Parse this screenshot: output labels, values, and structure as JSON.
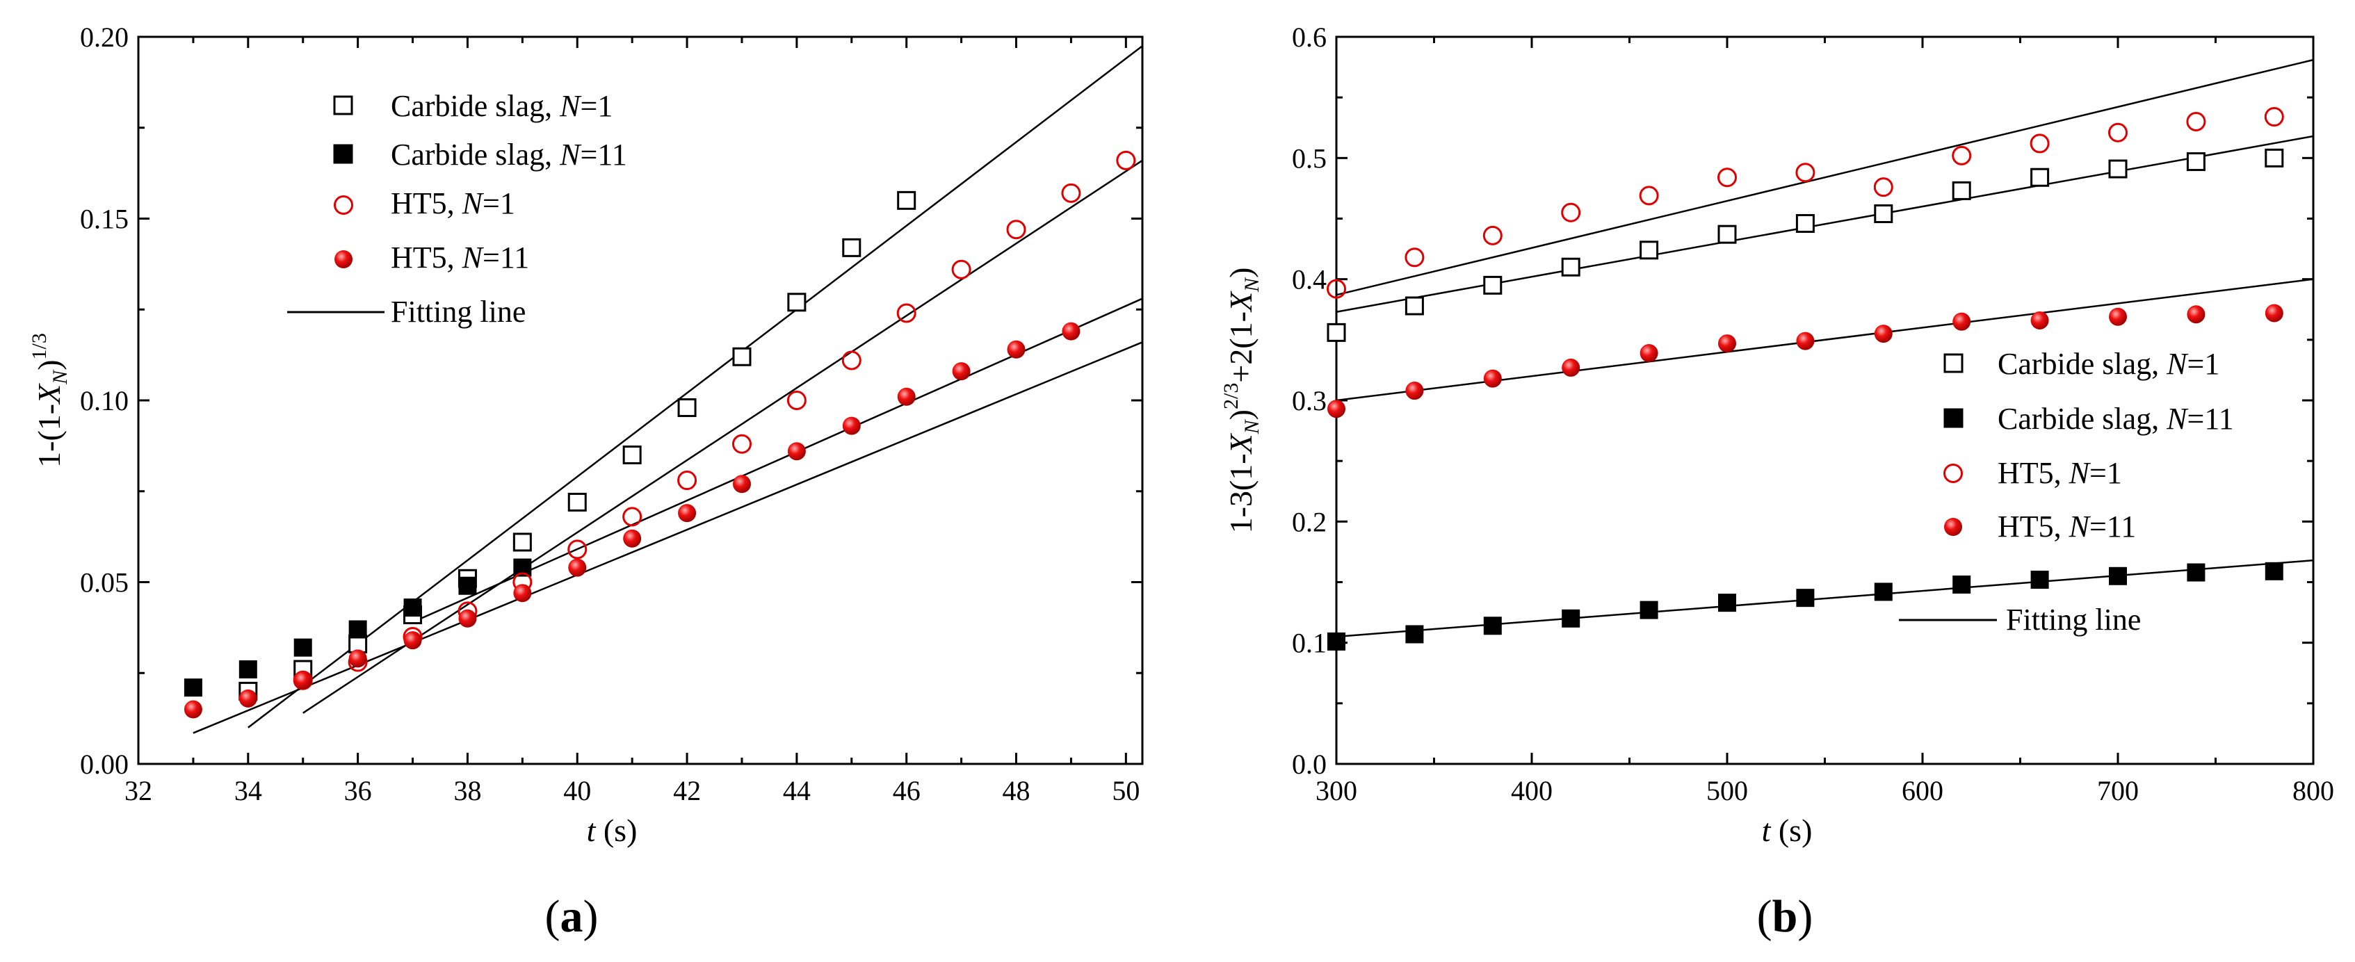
{
  "chart_data": [
    {
      "type": "scatter",
      "panel_label_open": "(",
      "panel_label_letter": "a",
      "panel_label_close": ")",
      "ylabel_prefix": "1-(1-",
      "ylabel_var": "X",
      "ylabel_sub": "N",
      "ylabel_close": ")",
      "ylabel_sup": "1/3",
      "xlabel_var": "t",
      "xlabel_unit": " (s)",
      "xlim": [
        32,
        50.3
      ],
      "ylim": [
        0.0,
        0.2
      ],
      "xticks": [
        "32",
        "34",
        "36",
        "38",
        "40",
        "42",
        "44",
        "46",
        "48",
        "50"
      ],
      "yticks": [
        "0.00",
        "0.05",
        "0.10",
        "0.15",
        "0.20"
      ],
      "legend_position": "top-left",
      "series": [
        {
          "name": "Carbide slag, N=1",
          "label_text": "Carbide slag, ",
          "label_var": "N",
          "label_val": "=1",
          "marker": "open-square",
          "x": [
            34,
            35,
            36,
            37,
            38,
            39,
            40,
            41,
            42,
            43,
            44,
            45,
            46
          ],
          "y": [
            0.02,
            0.026,
            0.033,
            0.041,
            0.051,
            0.061,
            0.072,
            0.085,
            0.098,
            0.112,
            0.127,
            0.142,
            0.155
          ],
          "fit": [
            [
              34,
              0.01
            ],
            [
              50.3,
              0.1975
            ]
          ]
        },
        {
          "name": "Carbide slag, N=11",
          "label_text": "Carbide slag, ",
          "label_var": "N",
          "label_val": "=11",
          "marker": "filled-square",
          "x": [
            33,
            34,
            35,
            36,
            37,
            38,
            39
          ],
          "y": [
            0.021,
            0.026,
            0.032,
            0.037,
            0.043,
            0.049,
            0.054
          ],
          "fit": [
            [
              33,
              0.0085
            ],
            [
              50.3,
              0.116
            ]
          ]
        },
        {
          "name": "HT5, N=1",
          "label_text": "HT5, ",
          "label_var": "N",
          "label_val": "=1",
          "marker": "open-circle",
          "x": [
            35,
            36,
            37,
            38,
            39,
            40,
            41,
            42,
            43,
            44,
            45,
            46,
            47,
            48,
            49,
            50
          ],
          "y": [
            0.023,
            0.028,
            0.035,
            0.042,
            0.05,
            0.059,
            0.068,
            0.078,
            0.088,
            0.1,
            0.111,
            0.124,
            0.136,
            0.147,
            0.157,
            0.166
          ],
          "fit": [
            [
              35,
              0.014
            ],
            [
              50.3,
              0.166
            ]
          ]
        },
        {
          "name": "HT5, N=11",
          "label_text": "HT5, ",
          "label_var": "N",
          "label_val": "=11",
          "marker": "filled-circle",
          "x": [
            33,
            34,
            35,
            36,
            37,
            38,
            39,
            40,
            41,
            42,
            43,
            44,
            45,
            46,
            47,
            48,
            49
          ],
          "y": [
            0.015,
            0.018,
            0.023,
            0.029,
            0.034,
            0.04,
            0.047,
            0.054,
            0.062,
            0.069,
            0.077,
            0.086,
            0.093,
            0.101,
            0.108,
            0.114,
            0.119
          ],
          "fit": [
            [
              37,
              0.039
            ],
            [
              50.3,
              0.128
            ]
          ]
        }
      ],
      "fit_label": "Fitting line"
    },
    {
      "type": "scatter",
      "panel_label_open": "(",
      "panel_label_letter": "b",
      "panel_label_close": ")",
      "ylabel_prefix": "1-3(1-",
      "ylabel_var": "X",
      "ylabel_sub": "N",
      "ylabel_mid": ")",
      "ylabel_sup": "2/3",
      "ylabel_suffix": "+2(1-",
      "ylabel_var2": "X",
      "ylabel_sub2": "N",
      "ylabel_close": ")",
      "xlabel_var": "t",
      "xlabel_unit": " (s)",
      "xlim": [
        300,
        800
      ],
      "ylim": [
        0.0,
        0.6
      ],
      "xticks": [
        "300",
        "400",
        "500",
        "600",
        "700",
        "800"
      ],
      "yticks": [
        "0.0",
        "0.1",
        "0.2",
        "0.3",
        "0.4",
        "0.5",
        "0.6"
      ],
      "legend_position": "center-right",
      "series": [
        {
          "name": "Carbide slag, N=1",
          "label_text": "Carbide slag, ",
          "label_var": "N",
          "label_val": "=1",
          "marker": "open-square",
          "x": [
            300,
            340,
            380,
            420,
            460,
            500,
            540,
            580,
            620,
            660,
            700,
            740,
            780
          ],
          "y": [
            0.356,
            0.378,
            0.395,
            0.41,
            0.424,
            0.437,
            0.446,
            0.454,
            0.473,
            0.484,
            0.491,
            0.497,
            0.5
          ],
          "fit": [
            [
              300,
              0.373
            ],
            [
              800,
              0.518
            ]
          ]
        },
        {
          "name": "Carbide slag, N=11",
          "label_text": "Carbide slag, ",
          "label_var": "N",
          "label_val": "=11",
          "marker": "filled-square",
          "x": [
            300,
            340,
            380,
            420,
            460,
            500,
            540,
            580,
            620,
            660,
            700,
            740,
            780
          ],
          "y": [
            0.101,
            0.107,
            0.114,
            0.12,
            0.127,
            0.133,
            0.137,
            0.142,
            0.148,
            0.152,
            0.155,
            0.158,
            0.159
          ],
          "fit": [
            [
              300,
              0.105
            ],
            [
              800,
              0.168
            ]
          ]
        },
        {
          "name": "HT5, N=1",
          "label_text": "HT5, ",
          "label_var": "N",
          "label_val": "=1",
          "marker": "open-circle",
          "x": [
            300,
            340,
            380,
            420,
            460,
            500,
            540,
            580,
            620,
            660,
            700,
            740,
            780
          ],
          "y": [
            0.392,
            0.418,
            0.436,
            0.455,
            0.469,
            0.484,
            0.488,
            0.476,
            0.502,
            0.512,
            0.521,
            0.53,
            0.534
          ],
          "fit": [
            [
              300,
              0.387
            ],
            [
              800,
              0.581
            ]
          ]
        },
        {
          "name": "HT5, N=11",
          "label_text": "HT5, ",
          "label_var": "N",
          "label_val": "=11",
          "marker": "filled-circle",
          "x": [
            300,
            340,
            380,
            420,
            460,
            500,
            540,
            580,
            620,
            660,
            700,
            740,
            780
          ],
          "y": [
            0.293,
            0.308,
            0.318,
            0.327,
            0.339,
            0.347,
            0.349,
            0.355,
            0.365,
            0.366,
            0.369,
            0.371,
            0.372
          ],
          "fit": [
            [
              300,
              0.3
            ],
            [
              800,
              0.4
            ]
          ]
        }
      ],
      "fit_label": "Fitting line"
    }
  ]
}
